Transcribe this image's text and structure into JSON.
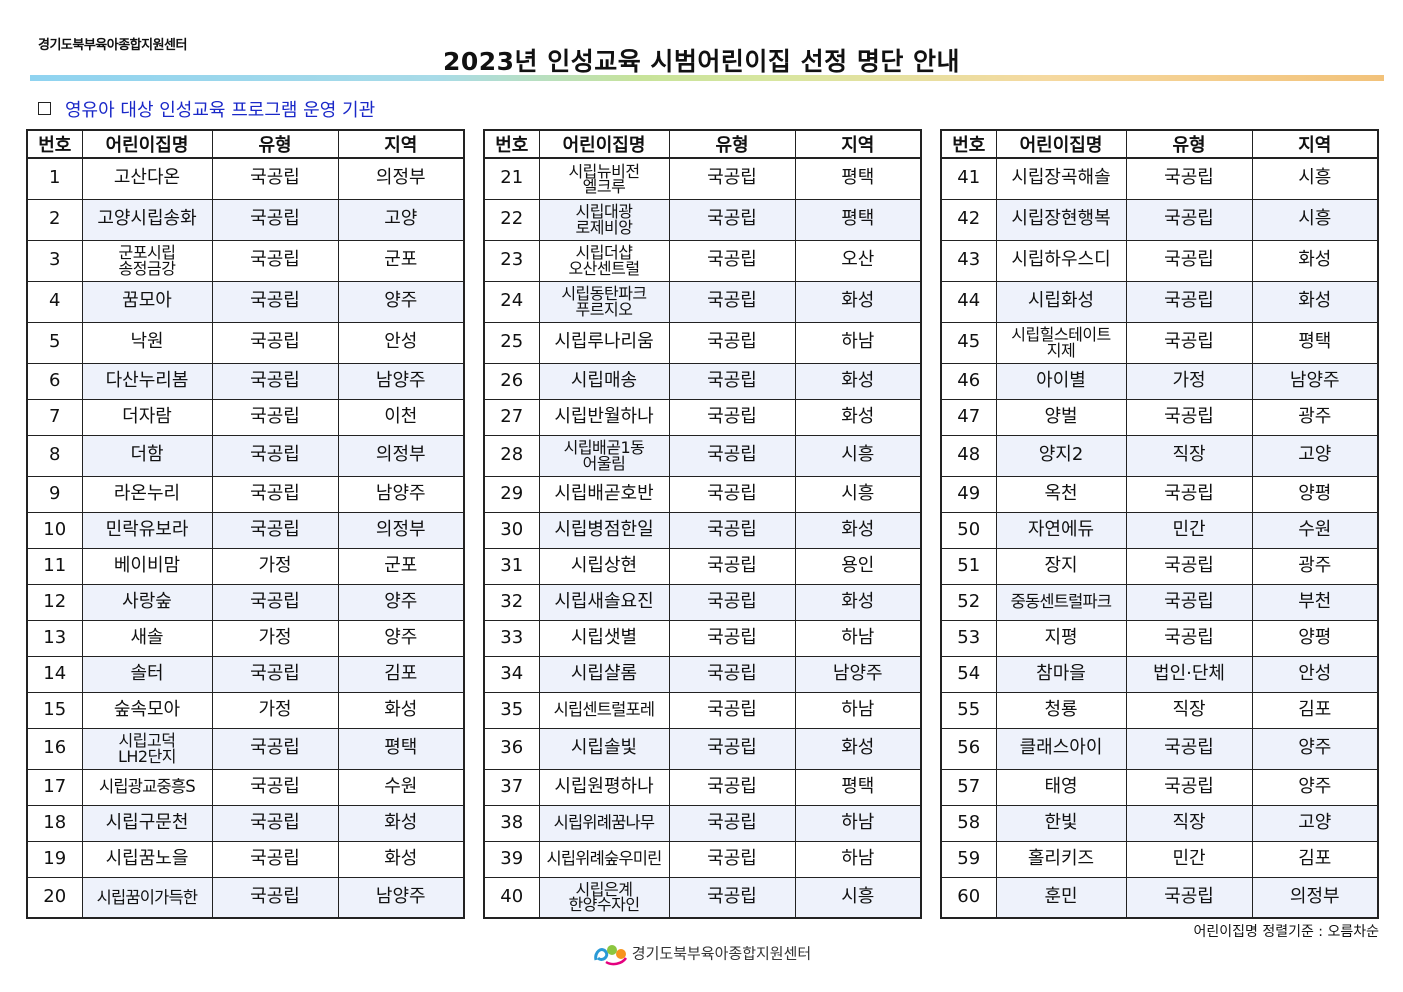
{
  "org_top": "경기도북부육아종합지원센터",
  "title": "2023년 인성교육 시범어린이집 선정 명단 안내",
  "section_label": "영유아 대상 인성교육 프로그램 운영 기관",
  "headers": [
    "번호",
    "어린이집명",
    "유형",
    "지역"
  ],
  "rows": [
    [
      "1",
      "고산다온",
      "국공립",
      "의정부"
    ],
    [
      "2",
      "고양시립송화",
      "국공립",
      "고양"
    ],
    [
      "3",
      "군포시립\n송정금강",
      "국공립",
      "군포"
    ],
    [
      "4",
      "꿈모아",
      "국공립",
      "양주"
    ],
    [
      "5",
      "낙원",
      "국공립",
      "안성"
    ],
    [
      "6",
      "다산누리봄",
      "국공립",
      "남양주"
    ],
    [
      "7",
      "더자람",
      "국공립",
      "이천"
    ],
    [
      "8",
      "더함",
      "국공립",
      "의정부"
    ],
    [
      "9",
      "라온누리",
      "국공립",
      "남양주"
    ],
    [
      "10",
      "민락유보라",
      "국공립",
      "의정부"
    ],
    [
      "11",
      "베이비맘",
      "가정",
      "군포"
    ],
    [
      "12",
      "사랑숲",
      "국공립",
      "양주"
    ],
    [
      "13",
      "새솔",
      "가정",
      "양주"
    ],
    [
      "14",
      "솔터",
      "국공립",
      "김포"
    ],
    [
      "15",
      "숲속모아",
      "가정",
      "화성"
    ],
    [
      "16",
      "시립고덕\nLH2단지",
      "국공립",
      "평택"
    ],
    [
      "17",
      "시립광교중흥S",
      "국공립",
      "수원"
    ],
    [
      "18",
      "시립구문천",
      "국공립",
      "화성"
    ],
    [
      "19",
      "시립꿈노을",
      "국공립",
      "화성"
    ],
    [
      "20",
      "시립꿈이가득한",
      "국공립",
      "남양주"
    ],
    [
      "21",
      "시립뉴비전\n엘크루",
      "국공립",
      "평택"
    ],
    [
      "22",
      "시립대광\n로제비앙",
      "국공립",
      "평택"
    ],
    [
      "23",
      "시립더샵\n오산센트럴",
      "국공립",
      "오산"
    ],
    [
      "24",
      "시립동탄파크\n푸르지오",
      "국공립",
      "화성"
    ],
    [
      "25",
      "시립루나리움",
      "국공립",
      "하남"
    ],
    [
      "26",
      "시립매송",
      "국공립",
      "화성"
    ],
    [
      "27",
      "시립반월하나",
      "국공립",
      "화성"
    ],
    [
      "28",
      "시립배곧1동\n어울림",
      "국공립",
      "시흥"
    ],
    [
      "29",
      "시립배곧호반",
      "국공립",
      "시흥"
    ],
    [
      "30",
      "시립병점한일",
      "국공립",
      "화성"
    ],
    [
      "31",
      "시립상현",
      "국공립",
      "용인"
    ],
    [
      "32",
      "시립새솔요진",
      "국공립",
      "화성"
    ],
    [
      "33",
      "시립샛별",
      "국공립",
      "하남"
    ],
    [
      "34",
      "시립샬롬",
      "국공립",
      "남양주"
    ],
    [
      "35",
      "시립센트럴포레",
      "국공립",
      "하남"
    ],
    [
      "36",
      "시립솔빛",
      "국공립",
      "화성"
    ],
    [
      "37",
      "시립원평하나",
      "국공립",
      "평택"
    ],
    [
      "38",
      "시립위례꿈나무",
      "국공립",
      "하남"
    ],
    [
      "39",
      "시립위례숲우미린",
      "국공립",
      "하남"
    ],
    [
      "40",
      "시립은계\n한양수자인",
      "국공립",
      "시흥"
    ],
    [
      "41",
      "시립장곡해솔",
      "국공립",
      "시흥"
    ],
    [
      "42",
      "시립장현행복",
      "국공립",
      "시흥"
    ],
    [
      "43",
      "시립하우스디",
      "국공립",
      "화성"
    ],
    [
      "44",
      "시립화성",
      "국공립",
      "화성"
    ],
    [
      "45",
      "시립힐스테이트\n지제",
      "국공립",
      "평택"
    ],
    [
      "46",
      "아이별",
      "가정",
      "남양주"
    ],
    [
      "47",
      "양벌",
      "국공립",
      "광주"
    ],
    [
      "48",
      "양지2",
      "직장",
      "고양"
    ],
    [
      "49",
      "옥천",
      "국공립",
      "양평"
    ],
    [
      "50",
      "자연에듀",
      "민간",
      "수원"
    ],
    [
      "51",
      "장지",
      "국공립",
      "광주"
    ],
    [
      "52",
      "중동센트럴파크",
      "국공립",
      "부천"
    ],
    [
      "53",
      "지평",
      "국공립",
      "양평"
    ],
    [
      "54",
      "참마을",
      "법인·단체",
      "안성"
    ],
    [
      "55",
      "청룡",
      "직장",
      "김포"
    ],
    [
      "56",
      "클래스아이",
      "국공립",
      "양주"
    ],
    [
      "57",
      "태영",
      "국공립",
      "양주"
    ],
    [
      "58",
      "한빛",
      "직장",
      "고양"
    ],
    [
      "59",
      "홀리키즈",
      "민간",
      "김포"
    ],
    [
      "60",
      "훈민",
      "국공립",
      "의정부"
    ]
  ],
  "note": "어린이집명 정렬기준 : 오름차순",
  "footer_org": "경기도북부육아종합지원센터",
  "colors": {
    "section_text": "#1a28c8",
    "row_alt": "#eef2fb"
  }
}
